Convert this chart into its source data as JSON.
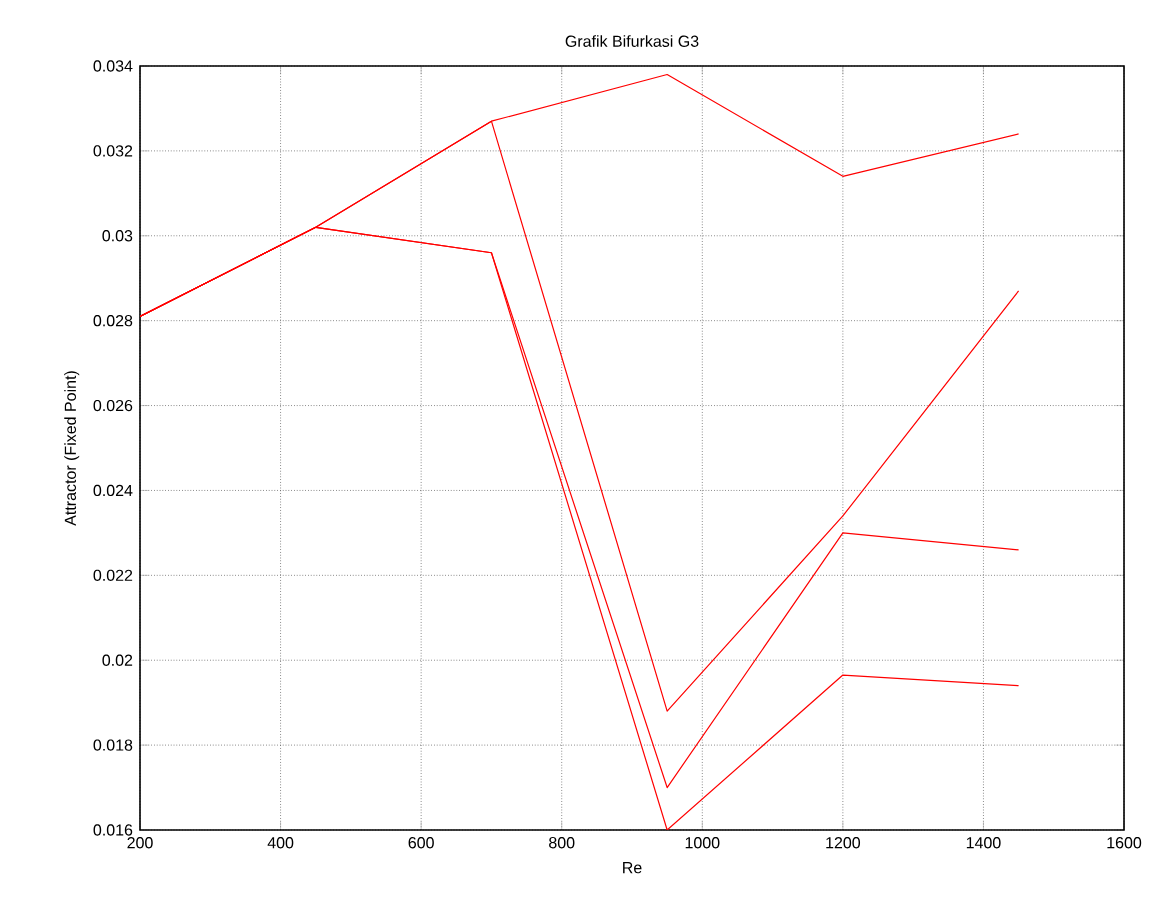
{
  "chart_data": {
    "type": "line",
    "title": "Grafik Bifurkasi G3",
    "xlabel": "Re",
    "ylabel": "Attractor (Fixed Point)",
    "x": [
      200,
      450,
      700,
      950,
      1200,
      1450
    ],
    "series": [
      {
        "color": "#ff0000",
        "values": [
          0.0281,
          0.0302,
          0.0327,
          0.0338,
          0.0314,
          0.0324
        ]
      },
      {
        "color": "#ff0000",
        "values": [
          0.0281,
          0.0302,
          0.0327,
          0.0188,
          0.0234,
          0.0287
        ]
      },
      {
        "color": "#ff0000",
        "values": [
          0.0281,
          0.0302,
          0.0296,
          0.017,
          0.023,
          0.0226
        ]
      },
      {
        "color": "#ff0000",
        "values": [
          0.0281,
          0.0302,
          0.0296,
          0.016,
          0.01965,
          0.0194
        ]
      }
    ],
    "xlim": [
      200,
      1600
    ],
    "xticks": [
      200,
      400,
      600,
      800,
      1000,
      1200,
      1400,
      1600
    ],
    "ylim": [
      0.016,
      0.034
    ],
    "yticks": [
      0.016,
      0.018,
      0.02,
      0.022,
      0.024,
      0.026,
      0.028,
      0.03,
      0.032,
      0.034
    ],
    "grid": true,
    "legend": false,
    "marker": "none",
    "line_style": "solid"
  }
}
